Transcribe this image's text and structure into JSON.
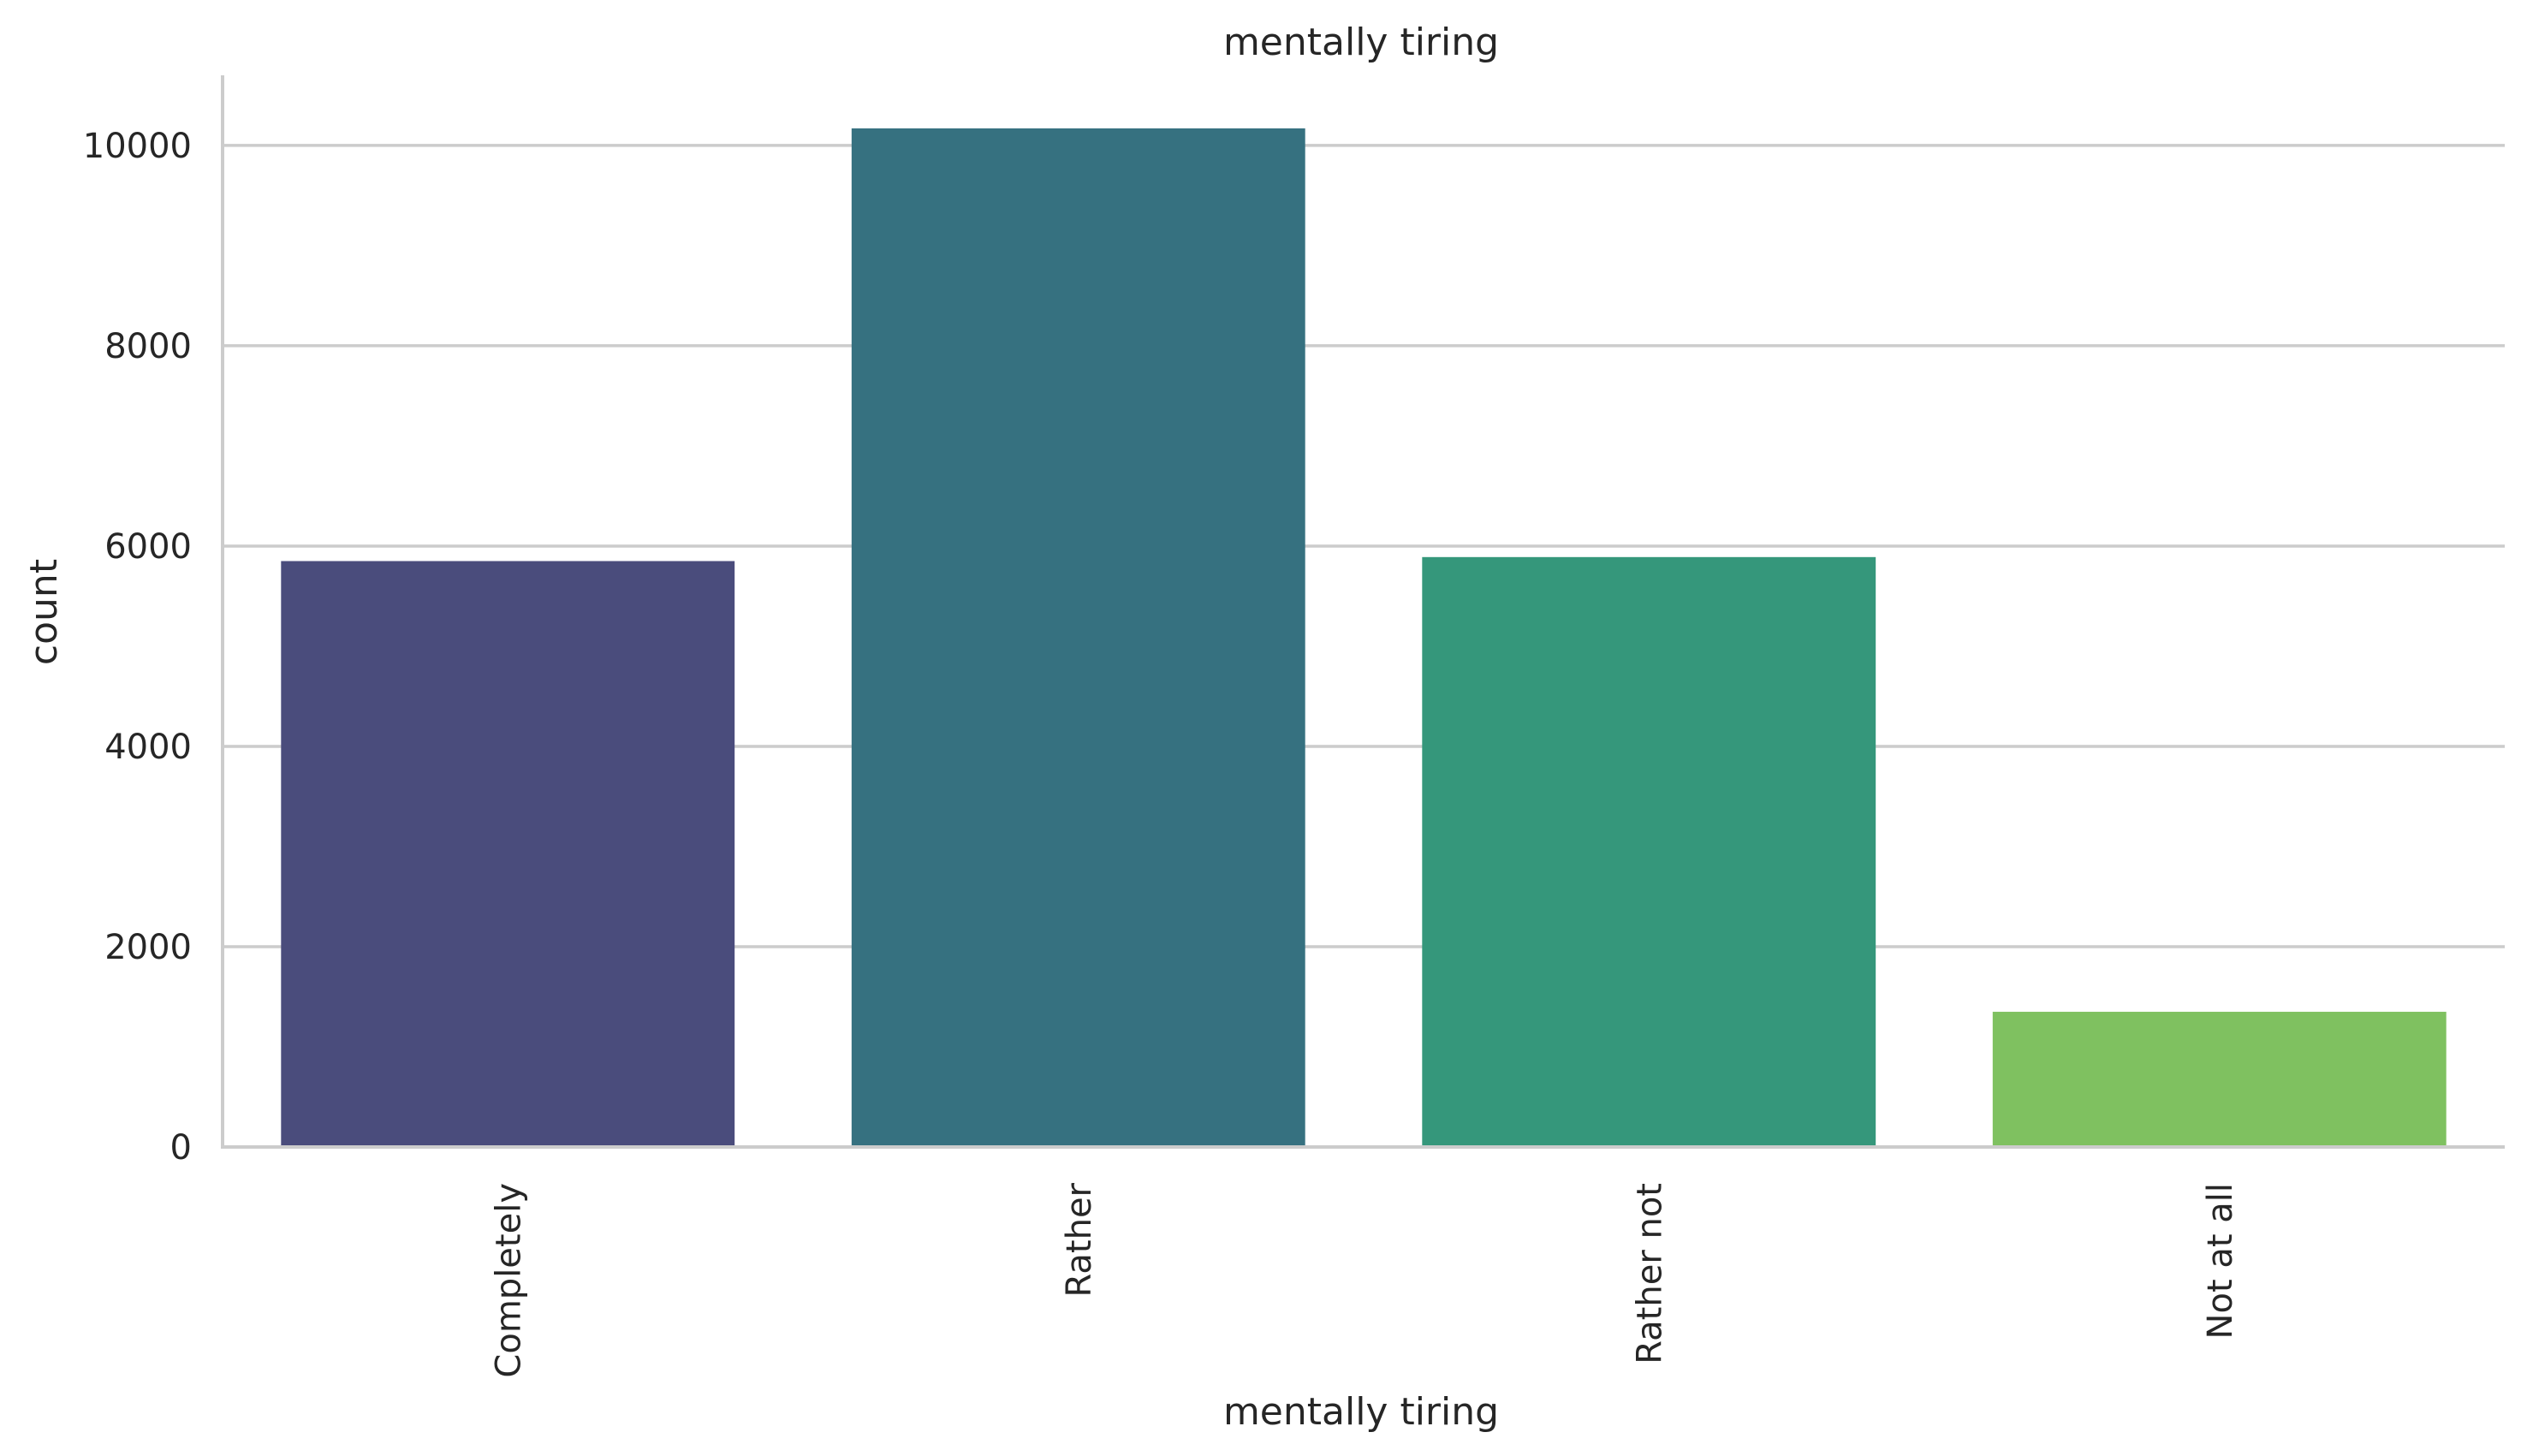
{
  "chart_data": {
    "type": "bar",
    "title": "mentally tiring",
    "xlabel": "mentally tiring",
    "ylabel": "count",
    "categories": [
      "Completely",
      "Rather",
      "Rather not",
      "Not at all"
    ],
    "values": [
      5850,
      10170,
      5890,
      1350
    ],
    "colors": [
      "#4a4c7c",
      "#367180",
      "#35977b",
      "#7fc160"
    ],
    "ylim": [
      0,
      10700
    ],
    "yticks": [
      0,
      2000,
      4000,
      6000,
      8000,
      10000
    ],
    "grid": "horizontal",
    "legend": "none"
  }
}
